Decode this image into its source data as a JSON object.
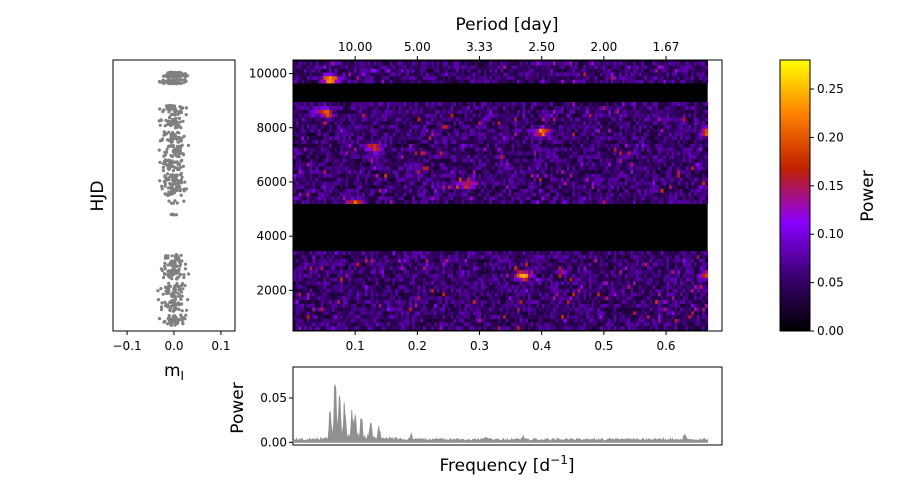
{
  "chart_data": [
    {
      "type": "scatter",
      "panel": "light-curve",
      "xlabel": "m",
      "xlabel_sub": "I",
      "ylabel": "HJD",
      "xlim": [
        -0.13,
        0.13
      ],
      "ylim": [
        500,
        10500
      ],
      "xticks": [
        "−0.1",
        "0.0",
        "0.1"
      ],
      "xtick_values": [
        -0.1,
        0.0,
        0.1
      ],
      "point_color": "#808080",
      "time_groups": [
        {
          "center": 9960,
          "spread": 90,
          "count": 90
        },
        {
          "center": 9700,
          "spread": 80,
          "count": 70
        },
        {
          "center": 8650,
          "spread": 180,
          "count": 45
        },
        {
          "center": 8200,
          "spread": 200,
          "count": 40
        },
        {
          "center": 7650,
          "spread": 200,
          "count": 45
        },
        {
          "center": 7150,
          "spread": 220,
          "count": 45
        },
        {
          "center": 6620,
          "spread": 200,
          "count": 45
        },
        {
          "center": 6100,
          "spread": 240,
          "count": 50
        },
        {
          "center": 5680,
          "spread": 180,
          "count": 40
        },
        {
          "center": 5250,
          "spread": 60,
          "count": 6
        },
        {
          "center": 4820,
          "spread": 60,
          "count": 5
        },
        {
          "center": 3100,
          "spread": 220,
          "count": 45
        },
        {
          "center": 2600,
          "spread": 200,
          "count": 45
        },
        {
          "center": 2000,
          "spread": 260,
          "count": 50
        },
        {
          "center": 1450,
          "spread": 220,
          "count": 45
        },
        {
          "center": 900,
          "spread": 200,
          "count": 45
        }
      ]
    },
    {
      "type": "heatmap",
      "panel": "time-frequency",
      "xlim": [
        0.0,
        0.69
      ],
      "ylim": [
        500,
        10500
      ],
      "yticks": [
        "2000",
        "4000",
        "6000",
        "8000",
        "10000"
      ],
      "ytick_values": [
        2000,
        4000,
        6000,
        8000,
        10000
      ],
      "xticks": [
        "0.1",
        "0.2",
        "0.3",
        "0.4",
        "0.5",
        "0.6"
      ],
      "xtick_values": [
        0.1,
        0.2,
        0.3,
        0.4,
        0.5,
        0.6
      ],
      "data_freq_range": [
        0.0,
        0.667
      ],
      "top_axis": {
        "label": "Period [day]",
        "ticks": [
          "10.00",
          "5.00",
          "3.33",
          "2.50",
          "2.00",
          "1.67"
        ],
        "tick_freqs": [
          0.1,
          0.2,
          0.3,
          0.4,
          0.5,
          0.6
        ]
      },
      "data_time_segments": [
        [
          550,
          3450
        ],
        [
          5200,
          8950
        ],
        [
          9650,
          10450
        ]
      ],
      "hotspots": [
        {
          "freq": 0.06,
          "hjd": 9800,
          "power": 0.22
        },
        {
          "freq": 0.1,
          "hjd": 5150,
          "power": 0.26
        },
        {
          "freq": 0.37,
          "hjd": 2550,
          "power": 0.2
        },
        {
          "freq": 0.4,
          "hjd": 7850,
          "power": 0.18
        },
        {
          "freq": 0.67,
          "hjd": 7850,
          "power": 0.18
        },
        {
          "freq": 0.67,
          "hjd": 2600,
          "power": 0.18
        },
        {
          "freq": 0.05,
          "hjd": 8600,
          "power": 0.16
        },
        {
          "freq": 0.13,
          "hjd": 7300,
          "power": 0.15
        },
        {
          "freq": 0.28,
          "hjd": 5900,
          "power": 0.14
        }
      ]
    },
    {
      "type": "area",
      "panel": "average-power-spectrum",
      "xlabel": "Frequency [d",
      "xlabel_sup": "−1",
      "xlabel_end": "]",
      "ylabel": "Power",
      "xlim": [
        0.0,
        0.69
      ],
      "ylim": [
        -0.003,
        0.085
      ],
      "yticks": [
        "0.00",
        "0.05"
      ],
      "ytick_values": [
        0.0,
        0.05
      ],
      "color": "#909090",
      "peaks": [
        {
          "freq": 0.068,
          "power": 0.078
        },
        {
          "freq": 0.075,
          "power": 0.05
        },
        {
          "freq": 0.06,
          "power": 0.03
        },
        {
          "freq": 0.083,
          "power": 0.035
        },
        {
          "freq": 0.095,
          "power": 0.028
        },
        {
          "freq": 0.1,
          "power": 0.025
        },
        {
          "freq": 0.11,
          "power": 0.02
        },
        {
          "freq": 0.125,
          "power": 0.018
        },
        {
          "freq": 0.138,
          "power": 0.012
        },
        {
          "freq": 0.19,
          "power": 0.005
        },
        {
          "freq": 0.31,
          "power": 0.004
        },
        {
          "freq": 0.37,
          "power": 0.004
        },
        {
          "freq": 0.63,
          "power": 0.005
        }
      ],
      "baseline": 0.003
    },
    {
      "type": "colorbar",
      "label": "Power",
      "range": [
        0.0,
        0.28
      ],
      "ticks": [
        "0.00",
        "0.05",
        "0.10",
        "0.15",
        "0.20",
        "0.25"
      ],
      "tick_values": [
        0.0,
        0.05,
        0.1,
        0.15,
        0.2,
        0.25
      ],
      "colormap": "gnuplot",
      "colormap_stops": [
        "#000000",
        "#3a0070",
        "#8a00ff",
        "#c02000",
        "#ff8000",
        "#ffff00"
      ]
    }
  ]
}
